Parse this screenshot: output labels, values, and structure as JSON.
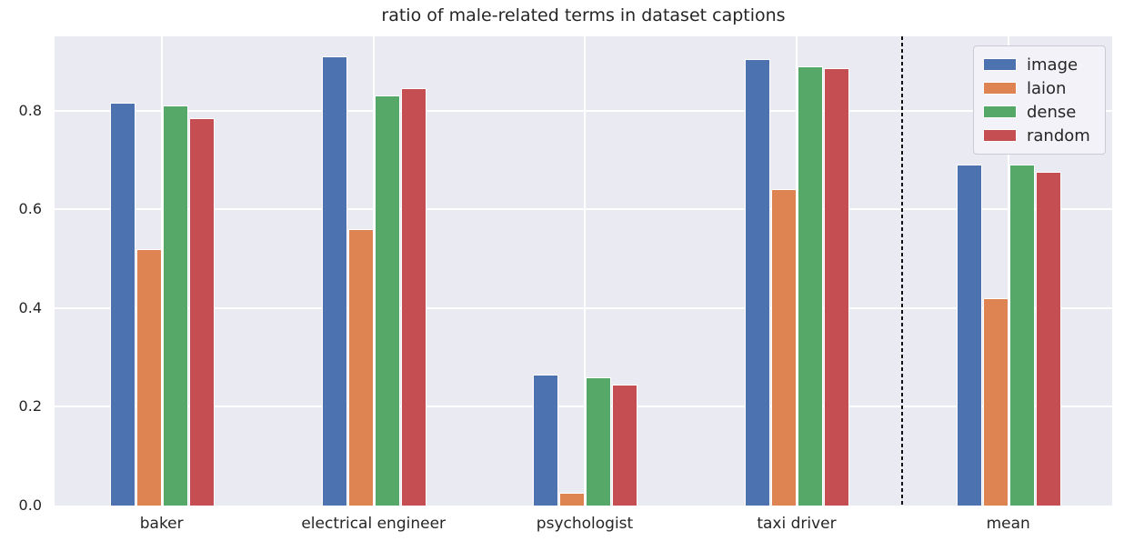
{
  "title": "ratio of male-related terms in dataset captions",
  "chart_data": {
    "type": "bar",
    "title": "ratio of male-related terms in dataset captions",
    "categories": [
      "baker",
      "electrical engineer",
      "psychologist",
      "taxi driver",
      "mean"
    ],
    "series": [
      {
        "name": "image",
        "color": "#4C72B0",
        "values": [
          0.815,
          0.91,
          0.265,
          0.905,
          0.69
        ]
      },
      {
        "name": "laion",
        "color": "#DD8452",
        "values": [
          0.52,
          0.56,
          0.025,
          0.64,
          0.42
        ]
      },
      {
        "name": "dense",
        "color": "#55A868",
        "values": [
          0.81,
          0.83,
          0.26,
          0.89,
          0.69
        ]
      },
      {
        "name": "random",
        "color": "#C44E52",
        "values": [
          0.785,
          0.845,
          0.245,
          0.885,
          0.675
        ]
      }
    ],
    "xlabel": "",
    "ylabel": "",
    "ylim": [
      0,
      0.95
    ],
    "yticks": [
      0.0,
      0.2,
      0.4,
      0.6,
      0.8
    ],
    "ytick_labels": [
      "0.0",
      "0.2",
      "0.4",
      "0.6",
      "0.8"
    ],
    "grid": true,
    "background_color": "#EAEAF2",
    "gridline_color": "#FFFFFF",
    "legend": {
      "position": "upper right",
      "entries": [
        "image",
        "laion",
        "dense",
        "random"
      ]
    },
    "separator": {
      "type": "vertical-dashed-line",
      "between": [
        "taxi driver",
        "mean"
      ],
      "color": "#111111"
    }
  }
}
